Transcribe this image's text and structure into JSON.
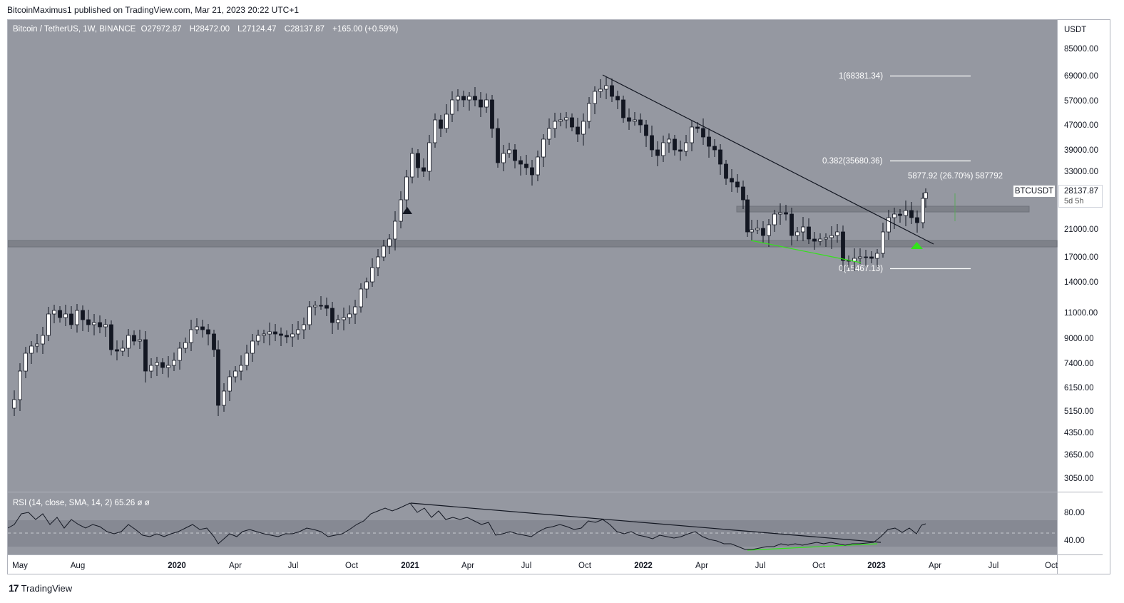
{
  "header": {
    "publisher": "BitcoinMaximus1 published on TradingView.com, Mar 21, 2023 20:22 UTC+1"
  },
  "legend": {
    "symbol": "Bitcoin / TetherUS, 1W, BINANCE",
    "open_label": "O",
    "open": "27972.87",
    "high_label": "H",
    "high": "28472.00",
    "low_label": "L",
    "low": "27124.47",
    "close_label": "C",
    "close": "28137.87",
    "change": "+165.00 (+0.59%)"
  },
  "rsi_legend": {
    "label": "RSI (14, close, SMA, 14, 2)",
    "value": "65.26",
    "extra1": "ø",
    "extra2": "ø"
  },
  "price_tag": {
    "symbol": "BTCUSDT",
    "price": "28137.87",
    "countdown": "5d 5h"
  },
  "footer": {
    "brand": "TradingView",
    "logo": "17"
  },
  "colors": {
    "pane_bg": "#9598a1",
    "band": "#7e8189",
    "axis_bg": "#ffffff",
    "green": "#33e31a"
  },
  "chart_data": {
    "type": "candlestick",
    "currency_label": "USDT",
    "price_axis": [
      "85000.00",
      "69000.00",
      "57000.00",
      "47000.00",
      "39000.00",
      "33000.00",
      "28137.87",
      "21000.00",
      "17000.00",
      "14000.00",
      "11000.00",
      "9000.00",
      "7400.00",
      "6150.00",
      "5150.00",
      "4350.00",
      "3650.00",
      "3050.00"
    ],
    "y_scale": "log",
    "time_axis": [
      "May",
      "Aug",
      "2020",
      "Apr",
      "Jul",
      "Oct",
      "2021",
      "Apr",
      "Jul",
      "Oct",
      "2022",
      "Apr",
      "Jul",
      "Oct",
      "2023",
      "Apr",
      "Jul",
      "Oct"
    ],
    "fib_levels": [
      {
        "label": "1(68381.34)",
        "value": 68381.34
      },
      {
        "label": "0.382(35680.36)",
        "value": 35680.36
      },
      {
        "label": "0(15467.13)",
        "value": 15467.13
      }
    ],
    "measure_label": "5877.92 (26.70%) 587792",
    "support_zone": {
      "low": 18300,
      "high": 19500
    },
    "resistance_zone": {
      "low": 24200,
      "high": 25400
    },
    "rsi": {
      "axis": [
        "80.00",
        "40.00"
      ],
      "levels": [
        70,
        50,
        30
      ],
      "value": 65.26
    }
  }
}
